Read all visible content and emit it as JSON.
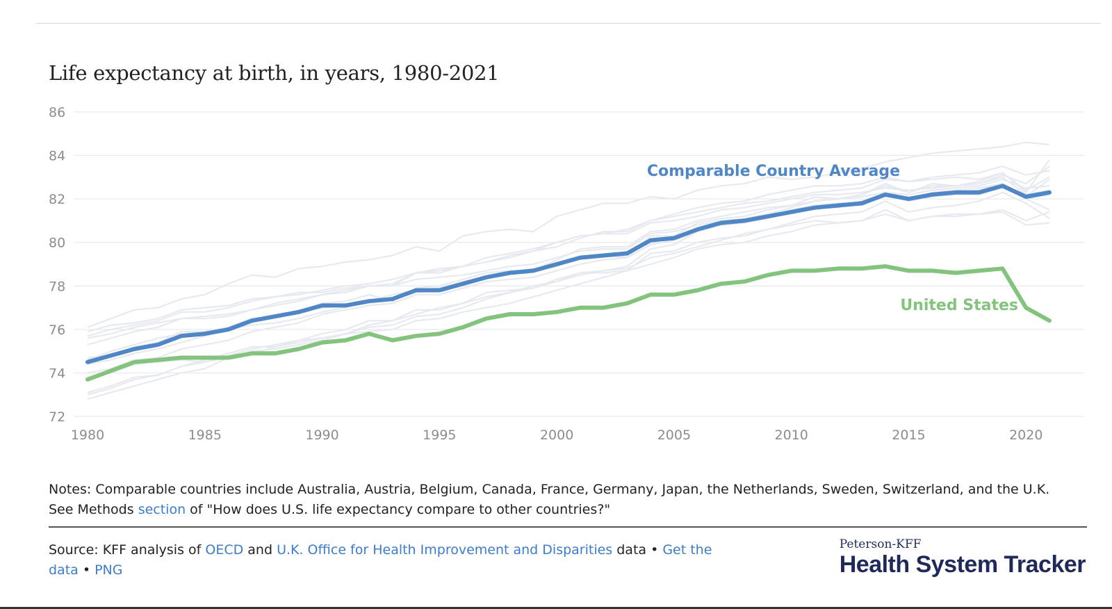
{
  "chart_data": {
    "type": "line",
    "title": "Life expectancy at birth, in years, 1980-2021",
    "xlabel": "",
    "ylabel": "",
    "xlim": [
      1980,
      2021
    ],
    "ylim": [
      72,
      86
    ],
    "x_ticks": [
      "1980",
      "1985",
      "1990",
      "1995",
      "2000",
      "2005",
      "2010",
      "2015",
      "2020"
    ],
    "y_ticks": [
      "86",
      "84",
      "82",
      "80",
      "78",
      "76",
      "74",
      "72"
    ],
    "grid": true,
    "legend": "inline labels",
    "x": [
      1980,
      1981,
      1982,
      1983,
      1984,
      1985,
      1986,
      1987,
      1988,
      1989,
      1990,
      1991,
      1992,
      1993,
      1994,
      1995,
      1996,
      1997,
      1998,
      1999,
      2000,
      2001,
      2002,
      2003,
      2004,
      2005,
      2006,
      2007,
      2008,
      2009,
      2010,
      2011,
      2012,
      2013,
      2014,
      2015,
      2016,
      2017,
      2018,
      2019,
      2020,
      2021
    ],
    "series": [
      {
        "name": "Comparable Country Average",
        "color": "#4f86c6",
        "values": [
          74.5,
          74.8,
          75.1,
          75.3,
          75.7,
          75.8,
          76.0,
          76.4,
          76.6,
          76.8,
          77.1,
          77.1,
          77.3,
          77.4,
          77.8,
          77.8,
          78.1,
          78.4,
          78.6,
          78.7,
          79.0,
          79.3,
          79.4,
          79.5,
          80.1,
          80.2,
          80.6,
          80.9,
          81.0,
          81.2,
          81.4,
          81.6,
          81.7,
          81.8,
          82.2,
          82.0,
          82.2,
          82.3,
          82.3,
          82.6,
          82.1,
          82.3
        ]
      },
      {
        "name": "United States",
        "color": "#84c37d",
        "values": [
          73.7,
          74.1,
          74.5,
          74.6,
          74.7,
          74.7,
          74.7,
          74.9,
          74.9,
          75.1,
          75.4,
          75.5,
          75.8,
          75.5,
          75.7,
          75.8,
          76.1,
          76.5,
          76.7,
          76.7,
          76.8,
          77.0,
          77.0,
          77.2,
          77.6,
          77.6,
          77.8,
          78.1,
          78.2,
          78.5,
          78.7,
          78.7,
          78.8,
          78.8,
          78.9,
          78.7,
          78.7,
          78.6,
          78.7,
          78.8,
          77.0,
          76.4
        ]
      }
    ],
    "background_series_color": "#e6eaf0",
    "background_series": [
      [
        74.6,
        75.0,
        75.3,
        75.6,
        75.8,
        75.9,
        76.1,
        76.4,
        76.6,
        76.8,
        77.0,
        77.1,
        77.3,
        77.4,
        77.7,
        77.8,
        78.1,
        78.4,
        78.6,
        78.7,
        78.9,
        79.3,
        79.4,
        79.4,
        80.1,
        80.2,
        80.6,
        80.8,
        80.9,
        81.2,
        81.4,
        81.6,
        81.7,
        81.7,
        82.2,
        81.9,
        82.1,
        82.2,
        82.2,
        82.6,
        82.0,
        82.2
      ],
      [
        76.1,
        76.5,
        76.9,
        77.0,
        77.4,
        77.6,
        78.1,
        78.5,
        78.4,
        78.8,
        78.9,
        79.1,
        79.2,
        79.4,
        79.8,
        79.6,
        80.3,
        80.5,
        80.6,
        80.5,
        81.2,
        81.5,
        81.8,
        81.8,
        82.1,
        82.0,
        82.4,
        82.6,
        82.7,
        83.0,
        82.9,
        83.0,
        83.2,
        83.4,
        83.7,
        83.9,
        84.1,
        84.2,
        84.3,
        84.4,
        84.6,
        84.5
      ],
      [
        75.9,
        76.2,
        76.3,
        76.5,
        76.9,
        77.0,
        77.1,
        77.4,
        77.5,
        77.6,
        77.8,
        78.0,
        78.1,
        78.3,
        78.6,
        78.7,
        78.9,
        79.3,
        79.5,
        79.7,
        80.0,
        80.3,
        80.4,
        80.6,
        81.0,
        81.2,
        81.4,
        81.6,
        81.8,
        81.9,
        82.1,
        82.3,
        82.4,
        82.5,
        82.9,
        82.8,
        83.0,
        83.1,
        83.2,
        83.5,
        83.1,
        83.3
      ],
      [
        75.7,
        76.0,
        76.2,
        76.4,
        76.8,
        76.8,
        77.0,
        77.3,
        77.5,
        77.7,
        77.7,
        77.9,
        78.0,
        78.0,
        78.3,
        78.4,
        78.5,
        78.7,
        78.9,
        79.0,
        79.3,
        79.6,
        79.7,
        79.7,
        80.4,
        80.5,
        80.8,
        81.0,
        81.1,
        81.3,
        81.6,
        81.9,
        82.0,
        82.1,
        82.3,
        82.2,
        82.4,
        82.5,
        82.6,
        82.9,
        82.5,
        82.6
      ],
      [
        74.4,
        74.6,
        74.9,
        75.1,
        75.4,
        75.7,
        76.0,
        76.2,
        76.3,
        76.5,
        76.8,
        77.0,
        77.3,
        77.6,
        77.8,
        77.9,
        78.2,
        78.4,
        78.6,
        78.8,
        79.0,
        79.3,
        79.4,
        79.3,
        80.3,
        80.3,
        80.9,
        81.1,
        81.2,
        81.5,
        81.7,
        82.1,
        82.0,
        82.2,
        82.7,
        82.3,
        82.6,
        82.6,
        82.7,
        83.0,
        82.2,
        82.4
      ],
      [
        73.1,
        73.4,
        73.8,
        73.9,
        74.3,
        74.5,
        74.8,
        75.1,
        75.3,
        75.5,
        75.6,
        75.8,
        76.1,
        76.2,
        76.6,
        76.7,
        77.0,
        77.4,
        77.7,
        77.9,
        78.3,
        78.6,
        78.7,
        78.9,
        79.7,
        79.9,
        80.5,
        80.8,
        80.9,
        81.2,
        81.5,
        81.7,
        81.8,
        81.8,
        82.3,
        82.0,
        82.3,
        82.4,
        82.5,
        82.7,
        82.0,
        81.5
      ],
      [
        72.8,
        73.1,
        73.4,
        73.7,
        74.0,
        74.2,
        74.7,
        75.0,
        75.1,
        75.3,
        75.5,
        75.8,
        76.2,
        76.4,
        76.7,
        77.0,
        77.2,
        77.5,
        77.7,
        78.0,
        78.2,
        78.5,
        78.7,
        78.8,
        79.3,
        79.5,
        79.8,
        80.1,
        80.4,
        80.6,
        80.9,
        81.2,
        81.3,
        81.4,
        81.9,
        81.4,
        81.6,
        81.7,
        81.9,
        82.3,
        81.8,
        81.1
      ],
      [
        73.0,
        73.3,
        73.7,
        73.9,
        74.3,
        74.6,
        74.9,
        75.2,
        75.2,
        75.5,
        75.8,
        76.0,
        76.4,
        76.4,
        76.9,
        76.9,
        77.2,
        77.7,
        77.8,
        77.9,
        78.2,
        78.6,
        78.6,
        78.7,
        79.5,
        79.6,
        80.0,
        80.2,
        80.3,
        80.6,
        80.8,
        81.0,
        80.9,
        81.0,
        81.5,
        81.0,
        81.2,
        81.3,
        81.3,
        81.4,
        80.8,
        80.9
      ],
      [
        73.8,
        74.0,
        74.4,
        74.5,
        74.6,
        74.5,
        74.7,
        74.9,
        75.2,
        75.4,
        75.6,
        75.8,
        75.9,
        76.0,
        76.4,
        76.5,
        76.8,
        77.0,
        77.2,
        77.5,
        77.8,
        78.1,
        78.4,
        78.7,
        79.0,
        79.3,
        79.7,
        79.9,
        80.0,
        80.3,
        80.5,
        80.8,
        80.9,
        81.0,
        81.3,
        81.0,
        81.2,
        81.2,
        81.3,
        81.5,
        81.0,
        81.4
      ],
      [
        75.3,
        75.6,
        75.9,
        76.1,
        76.5,
        76.5,
        76.6,
        76.9,
        77.1,
        77.3,
        77.6,
        77.7,
        78.0,
        78.0,
        78.6,
        78.6,
        78.9,
        79.1,
        79.4,
        79.6,
        79.8,
        80.2,
        80.5,
        80.5,
        81.0,
        81.3,
        81.6,
        81.8,
        81.9,
        82.2,
        82.4,
        82.6,
        82.6,
        82.7,
        83.0,
        82.8,
        82.9,
        83.0,
        82.9,
        83.2,
        82.4,
        83.0
      ],
      [
        75.6,
        75.8,
        76.1,
        76.3,
        76.5,
        76.6,
        76.7,
        76.9,
        77.2,
        77.4,
        77.6,
        77.8,
        78.0,
        78.1,
        78.6,
        78.8,
        78.9,
        79.1,
        79.3,
        79.6,
        80.0,
        80.3,
        80.4,
        80.4,
        80.9,
        81.0,
        81.2,
        81.5,
        81.6,
        81.8,
        82.0,
        82.2,
        82.2,
        82.3,
        82.5,
        82.4,
        82.5,
        82.6,
        82.7,
        83.1,
        82.7,
        83.5
      ],
      [
        74.7,
        74.8,
        75.2,
        75.4,
        75.9,
        75.9,
        76.1,
        76.5,
        76.6,
        76.8,
        77.2,
        77.3,
        77.6,
        77.3,
        77.9,
        78.0,
        78.3,
        78.6,
        78.7,
        78.7,
        79.2,
        79.7,
        79.8,
        79.8,
        80.5,
        80.6,
        81.0,
        81.2,
        81.4,
        81.6,
        81.7,
        81.9,
        82.0,
        82.2,
        82.6,
        82.3,
        82.7,
        82.6,
        82.8,
        83.2,
        82.3,
        83.8
      ],
      [
        74.0,
        74.2,
        74.6,
        74.7,
        75.1,
        75.3,
        75.5,
        75.9,
        76.1,
        76.3,
        76.7,
        76.9,
        77.1,
        77.2,
        77.6,
        77.6,
        77.9,
        78.2,
        78.3,
        78.4,
        78.7,
        79.0,
        79.2,
        79.3,
        79.9,
        80.1,
        80.5,
        80.8,
        80.9,
        81.1,
        81.4,
        81.6,
        81.6,
        81.9,
        82.2,
        82.0,
        82.2,
        82.3,
        82.4,
        82.7,
        82.1,
        82.9
      ]
    ]
  },
  "notes": {
    "line1": "Notes: Comparable countries include Australia, Austria, Belgium, Canada, France, Germany, Japan, the Netherlands, Sweden, Switzerland, and the U.K.",
    "line2_prefix": "See Methods ",
    "line2_link": "section",
    "line2_suffix": " of \"How does U.S. life expectancy compare to other countries?\""
  },
  "source": {
    "prefix": "Source: KFF analysis of ",
    "link_oecd": "OECD",
    "and": " and ",
    "link_uk": "U.K. Office for Health Improvement and Disparities",
    "data_text": " data • ",
    "link_get_data": "Get the data",
    "sep": " • ",
    "link_png": "PNG"
  },
  "brand": {
    "top": "Peterson-KFF",
    "main": "Health System Tracker"
  }
}
